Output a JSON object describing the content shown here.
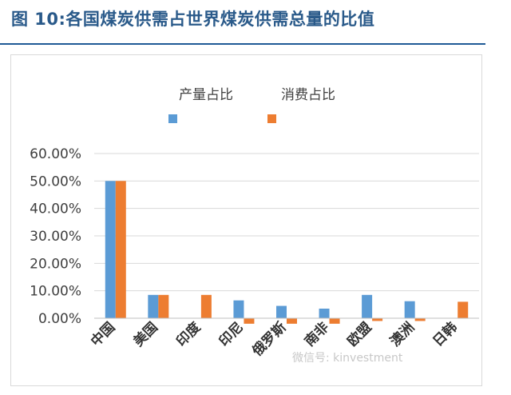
{
  "figure_title": "图 10:各国煤炭供需占世界煤炭供需总量的比值",
  "watermark": "微信号: kinvestment",
  "colors": {
    "production": "#5b9bd5",
    "consumption": "#ed7d31",
    "title": "#2a5a8a",
    "rule": "#1f5a96",
    "grid": "#d9d9d9"
  },
  "chart_data": {
    "type": "bar",
    "categories": [
      "中国",
      "美国",
      "印度",
      "印尼",
      "俄罗斯",
      "南非",
      "欧盟",
      "澳洲",
      "日韩"
    ],
    "series": [
      {
        "name": "产量占比",
        "values": [
          0.5,
          0.085,
          0.0,
          0.065,
          0.045,
          0.035,
          0.085,
          0.062,
          0.0
        ]
      },
      {
        "name": "消费占比",
        "values": [
          0.5,
          0.085,
          0.085,
          -0.02,
          -0.02,
          -0.02,
          -0.01,
          -0.01,
          0.06
        ]
      }
    ],
    "yticks": [
      "0.00%",
      "10.00%",
      "20.00%",
      "30.00%",
      "40.00%",
      "50.00%",
      "60.00%"
    ],
    "ylim": [
      0,
      0.6
    ],
    "grid": true,
    "legend_position": "top"
  }
}
